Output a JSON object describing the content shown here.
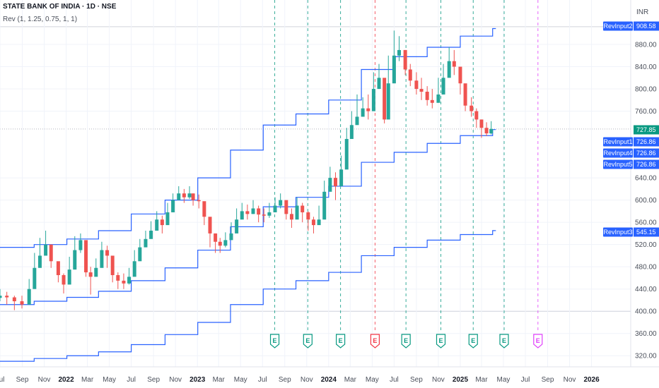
{
  "header": {
    "title": "STATE BANK OF INDIA · 1D · NSE",
    "indicator": "Rev (1, 1.25, 0.75, 1, 1)",
    "currency": "INR"
  },
  "colors": {
    "up": "#26a69a",
    "down": "#ef5350",
    "level": "#2962ff",
    "label_bg": "#2962ff",
    "price_bg": "#089981",
    "earn_green": "#089981",
    "earn_red": "#f23645",
    "earn_future": "#e040fb"
  },
  "chart_data": {
    "type": "line",
    "title": "STATE BANK OF INDIA · 1D · NSE",
    "ylim": [
      300,
      960
    ],
    "ytick_labels": [
      "320.00",
      "360.00",
      "400.00",
      "440.00",
      "480.00",
      "520.00",
      "560.00",
      "600.00",
      "640.00",
      "760.00",
      "800.00",
      "840.00",
      "880.00"
    ],
    "ytick_values": [
      320,
      360,
      400,
      440,
      480,
      520,
      560,
      600,
      640,
      760,
      800,
      840,
      880
    ],
    "x_start": "2021-07-01",
    "x_end": "2026-04-20",
    "xtick_labels": [
      "Jul",
      "Sep",
      "Nov",
      "2022",
      "Mar",
      "May",
      "Jul",
      "Sep",
      "Nov",
      "2023",
      "Mar",
      "May",
      "Jul",
      "Sep",
      "Nov",
      "2024",
      "Mar",
      "May",
      "Jul",
      "Sep",
      "Nov",
      "2025",
      "Mar",
      "May",
      "Jul",
      "Sep",
      "Nov",
      "2026"
    ],
    "xtick_dates": [
      "2021-07-01",
      "2021-09-01",
      "2021-11-01",
      "2022-01-01",
      "2022-03-01",
      "2022-05-01",
      "2022-07-01",
      "2022-09-01",
      "2022-11-01",
      "2023-01-01",
      "2023-03-01",
      "2023-05-01",
      "2023-07-01",
      "2023-09-01",
      "2023-11-01",
      "2024-01-01",
      "2024-03-01",
      "2024-05-01",
      "2024-07-01",
      "2024-09-01",
      "2024-11-01",
      "2025-01-01",
      "2025-03-01",
      "2025-05-01",
      "2025-07-01",
      "2025-09-01",
      "2025-11-01",
      "2026-01-01"
    ],
    "bold_xticks": [
      "2022",
      "2023",
      "2024",
      "2025",
      "2026"
    ],
    "price_series": {
      "dates": [
        "2021-07-01",
        "2021-07-20",
        "2021-08-10",
        "2021-08-31",
        "2021-09-20",
        "2021-10-05",
        "2021-10-20",
        "2021-11-05",
        "2021-11-20",
        "2021-12-10",
        "2021-12-25",
        "2022-01-10",
        "2022-01-25",
        "2022-02-10",
        "2022-02-25",
        "2022-03-10",
        "2022-03-25",
        "2022-04-10",
        "2022-04-25",
        "2022-05-10",
        "2022-05-25",
        "2022-06-10",
        "2022-06-25",
        "2022-07-10",
        "2022-07-25",
        "2022-08-10",
        "2022-08-25",
        "2022-09-10",
        "2022-09-25",
        "2022-10-10",
        "2022-10-25",
        "2022-11-10",
        "2022-11-25",
        "2022-12-10",
        "2022-12-20",
        "2023-01-05",
        "2023-01-20",
        "2023-02-05",
        "2023-02-20",
        "2023-03-05",
        "2023-03-20",
        "2023-04-05",
        "2023-04-20",
        "2023-05-05",
        "2023-05-20",
        "2023-06-05",
        "2023-06-20",
        "2023-07-05",
        "2023-07-20",
        "2023-08-05",
        "2023-08-20",
        "2023-09-05",
        "2023-09-20",
        "2023-10-05",
        "2023-10-20",
        "2023-11-05",
        "2023-11-20",
        "2023-12-05",
        "2023-12-20",
        "2024-01-05",
        "2024-01-20",
        "2024-02-05",
        "2024-02-20",
        "2024-03-05",
        "2024-03-20",
        "2024-04-05",
        "2024-04-20",
        "2024-05-05",
        "2024-05-20",
        "2024-06-04",
        "2024-06-15",
        "2024-07-01",
        "2024-07-15",
        "2024-08-01",
        "2024-08-15",
        "2024-09-01",
        "2024-09-15",
        "2024-10-01",
        "2024-10-15",
        "2024-11-01",
        "2024-11-15",
        "2024-12-01",
        "2024-12-15",
        "2025-01-01",
        "2025-01-15",
        "2025-02-01",
        "2025-02-15",
        "2025-03-01",
        "2025-03-15",
        "2025-03-28"
      ],
      "close": [
        428,
        425,
        418,
        412,
        440,
        478,
        500,
        520,
        490,
        465,
        448,
        475,
        510,
        528,
        470,
        462,
        478,
        510,
        500,
        465,
        455,
        450,
        462,
        490,
        515,
        530,
        545,
        565,
        555,
        578,
        600,
        612,
        605,
        612,
        600,
        598,
        570,
        540,
        525,
        518,
        528,
        540,
        565,
        580,
        575,
        585,
        574,
        572,
        578,
        590,
        600,
        575,
        565,
        590,
        578,
        565,
        555,
        565,
        615,
        640,
        625,
        655,
        710,
        735,
        750,
        765,
        760,
        800,
        820,
        745,
        810,
        860,
        870,
        835,
        815,
        800,
        795,
        780,
        775,
        790,
        820,
        850,
        840,
        810,
        770,
        760,
        745,
        730,
        720,
        728
      ],
      "high": [
        440,
        435,
        428,
        428,
        458,
        505,
        532,
        545,
        520,
        485,
        468,
        498,
        535,
        540,
        505,
        480,
        495,
        525,
        518,
        482,
        470,
        468,
        478,
        510,
        530,
        545,
        562,
        580,
        572,
        595,
        612,
        625,
        620,
        625,
        612,
        610,
        590,
        560,
        540,
        532,
        542,
        560,
        585,
        595,
        592,
        600,
        590,
        585,
        595,
        605,
        612,
        595,
        585,
        605,
        595,
        580,
        570,
        590,
        635,
        660,
        650,
        680,
        730,
        760,
        790,
        785,
        790,
        830,
        845,
        800,
        860,
        905,
        895,
        870,
        845,
        830,
        820,
        805,
        800,
        820,
        845,
        875,
        870,
        835,
        800,
        785,
        765,
        745,
        740,
        742
      ],
      "low": [
        418,
        412,
        402,
        405,
        428,
        470,
        490,
        505,
        478,
        452,
        432,
        462,
        498,
        505,
        462,
        430,
        465,
        495,
        478,
        452,
        440,
        440,
        448,
        480,
        505,
        520,
        535,
        555,
        540,
        570,
        590,
        600,
        595,
        602,
        590,
        585,
        555,
        515,
        505,
        505,
        515,
        530,
        555,
        570,
        565,
        575,
        560,
        560,
        568,
        578,
        585,
        565,
        550,
        578,
        560,
        545,
        540,
        558,
        605,
        625,
        600,
        640,
        695,
        720,
        740,
        750,
        745,
        785,
        800,
        738,
        790,
        840,
        850,
        825,
        805,
        790,
        780,
        770,
        765,
        785,
        810,
        840,
        825,
        790,
        760,
        750,
        730,
        712,
        715,
        718
      ]
    },
    "levels": [
      {
        "name": "RevInput2",
        "label_value": "908.58",
        "x": [
          "2021-07-01",
          "2021-10-04",
          "2022-01-03",
          "2022-04-01",
          "2022-07-01",
          "2022-10-03",
          "2023-01-02",
          "2023-04-03",
          "2023-07-03",
          "2023-10-02",
          "2024-01-01",
          "2024-04-01",
          "2024-07-01",
          "2024-10-01",
          "2025-01-01",
          "2025-04-01"
        ],
        "y": [
          515,
          520,
          530,
          545,
          575,
          600,
          640,
          690,
          735,
          755,
          780,
          835,
          858,
          875,
          895,
          908.58
        ]
      },
      {
        "name": "RevInput1",
        "label_value": "726.86",
        "x": [
          "2021-07-01",
          "2021-10-04",
          "2022-01-03",
          "2022-04-01",
          "2022-07-01",
          "2022-10-03",
          "2023-01-02",
          "2023-04-03",
          "2023-07-03",
          "2023-10-02",
          "2024-01-01",
          "2024-04-01",
          "2024-07-01",
          "2024-10-01",
          "2025-01-01",
          "2025-04-01"
        ],
        "y": [
          412,
          418,
          425,
          436,
          455,
          478,
          510,
          552,
          588,
          605,
          625,
          668,
          686,
          702,
          716,
          726.86
        ]
      },
      {
        "name": "RevInput4",
        "label_value": "726.86",
        "x": [],
        "y": []
      },
      {
        "name": "RevInput5",
        "label_value": "726.86",
        "x": [],
        "y": []
      },
      {
        "name": "RevInput3",
        "label_value": "545.15",
        "x": [
          "2021-07-01",
          "2021-10-04",
          "2022-01-03",
          "2022-04-01",
          "2022-07-01",
          "2022-10-03",
          "2023-01-02",
          "2023-04-03",
          "2023-07-03",
          "2023-10-02",
          "2024-01-01",
          "2024-04-01",
          "2024-07-01",
          "2024-10-01",
          "2025-01-01",
          "2025-04-01"
        ],
        "y": [
          310,
          315,
          320,
          327,
          340,
          358,
          380,
          412,
          440,
          455,
          470,
          500,
          515,
          528,
          538,
          545.15
        ]
      }
    ],
    "last_price": "727.85",
    "last_price_value": 727.85,
    "earnings": [
      {
        "date": "2023-08-04",
        "label": "E",
        "color": "earn_green"
      },
      {
        "date": "2023-11-04",
        "label": "E",
        "color": "earn_green"
      },
      {
        "date": "2024-02-03",
        "label": "E",
        "color": "earn_green"
      },
      {
        "date": "2024-05-09",
        "label": "E",
        "color": "earn_red"
      },
      {
        "date": "2024-08-03",
        "label": "E",
        "color": "earn_green"
      },
      {
        "date": "2024-11-08",
        "label": "E",
        "color": "earn_green"
      },
      {
        "date": "2025-02-06",
        "label": "E",
        "color": "earn_green"
      },
      {
        "date": "2025-05-03",
        "label": "E",
        "color": "earn_green"
      },
      {
        "date": "2025-08-05",
        "label": "E",
        "color": "earn_future"
      }
    ]
  }
}
